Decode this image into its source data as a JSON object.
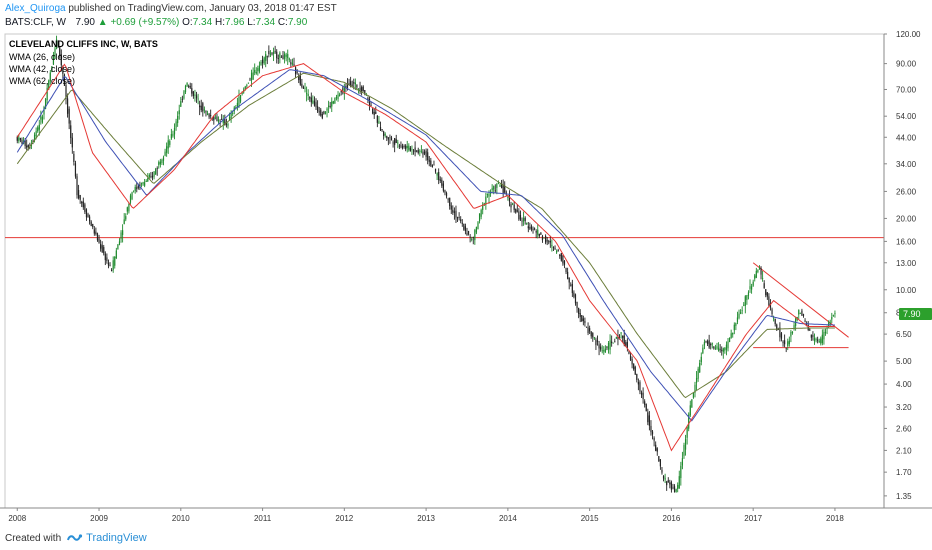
{
  "publication": {
    "author": "Alex_Quiroga",
    "text": " published on TradingView.com, January 03, 2018 01:47 EST"
  },
  "quote": {
    "symbol": "BATS:CLF, W",
    "last": "7.90",
    "change_arrow": "▲",
    "change": "+0.69 (+9.57%)",
    "open_label": "O:",
    "open": "7.34",
    "high_label": "H:",
    "high": "7.96",
    "low_label": "L:",
    "low": "7.34",
    "close_label": "C:",
    "close": "7.90"
  },
  "footer": {
    "created_with": "Created with",
    "brand": "TradingView"
  },
  "colors": {
    "up_candle": "#1f8a2e",
    "down_candle": "#222222",
    "wma26": "#e53935",
    "wma42": "#3f51b5",
    "wma62": "#6b7d3a",
    "support_line": "#e53935",
    "last_price_tag": "#2ca02c"
  },
  "chart_data": {
    "type": "candlestick",
    "title": "CLEVELAND CLIFFS INC, W, BATS",
    "legend": [
      "WMA (26, close)",
      "WMA (42, close)",
      "WMA (62, close)"
    ],
    "y_scale": "log",
    "y_ticks": [
      "120.00",
      "90.00",
      "70.00",
      "54.00",
      "44.00",
      "34.00",
      "26.00",
      "20.00",
      "16.00",
      "13.00",
      "10.00",
      "8.00",
      "6.50",
      "5.00",
      "4.00",
      "3.20",
      "2.60",
      "2.10",
      "1.70",
      "1.35"
    ],
    "x_ticks": [
      "2008",
      "2009",
      "2010",
      "2011",
      "2012",
      "2013",
      "2014",
      "2015",
      "2016",
      "2017",
      "2018"
    ],
    "last_price": "7.90",
    "price_path": [
      [
        "2008-01",
        44
      ],
      [
        "2008-03",
        40
      ],
      [
        "2008-05",
        55
      ],
      [
        "2008-07",
        115
      ],
      [
        "2008-08",
        80
      ],
      [
        "2008-10",
        26
      ],
      [
        "2008-12",
        19
      ],
      [
        "2009-03",
        12
      ],
      [
        "2009-06",
        26
      ],
      [
        "2009-09",
        30
      ],
      [
        "2009-12",
        45
      ],
      [
        "2010-02",
        75
      ],
      [
        "2010-05",
        55
      ],
      [
        "2010-08",
        50
      ],
      [
        "2010-11",
        75
      ],
      [
        "2011-02",
        100
      ],
      [
        "2011-05",
        95
      ],
      [
        "2011-08",
        65
      ],
      [
        "2011-10",
        55
      ],
      [
        "2012-02",
        75
      ],
      [
        "2012-04",
        70
      ],
      [
        "2012-07",
        45
      ],
      [
        "2012-10",
        40
      ],
      [
        "2013-01",
        38
      ],
      [
        "2013-03",
        30
      ],
      [
        "2013-05",
        22
      ],
      [
        "2013-08",
        16
      ],
      [
        "2013-10",
        25
      ],
      [
        "2013-12",
        28
      ],
      [
        "2014-03",
        20
      ],
      [
        "2014-06",
        17
      ],
      [
        "2014-09",
        14
      ],
      [
        "2014-12",
        7.5
      ],
      [
        "2015-03",
        5.5
      ],
      [
        "2015-06",
        6.5
      ],
      [
        "2015-09",
        3.5
      ],
      [
        "2015-12",
        1.6
      ],
      [
        "2016-02",
        1.4
      ],
      [
        "2016-04",
        3.2
      ],
      [
        "2016-06",
        6.0
      ],
      [
        "2016-09",
        5.5
      ],
      [
        "2016-12",
        9.0
      ],
      [
        "2017-02",
        12.5
      ],
      [
        "2017-04",
        7.8
      ],
      [
        "2017-06",
        5.6
      ],
      [
        "2017-08",
        8.2
      ],
      [
        "2017-10",
        6.2
      ],
      [
        "2017-11",
        6.0
      ],
      [
        "2018-01",
        7.9
      ]
    ],
    "wma26_path": [
      [
        "2008-01",
        44
      ],
      [
        "2008-08",
        90
      ],
      [
        "2008-12",
        38
      ],
      [
        "2009-06",
        22
      ],
      [
        "2009-12",
        32
      ],
      [
        "2010-06",
        55
      ],
      [
        "2011-01",
        80
      ],
      [
        "2011-07",
        90
      ],
      [
        "2012-01",
        68
      ],
      [
        "2012-07",
        55
      ],
      [
        "2013-01",
        42
      ],
      [
        "2013-08",
        22
      ],
      [
        "2014-01",
        25
      ],
      [
        "2014-08",
        16
      ],
      [
        "2015-01",
        9
      ],
      [
        "2015-08",
        5
      ],
      [
        "2016-01",
        2.1
      ],
      [
        "2016-06",
        3.5
      ],
      [
        "2016-12",
        6.5
      ],
      [
        "2017-04",
        9
      ],
      [
        "2017-09",
        7.0
      ],
      [
        "2018-01",
        7.0
      ]
    ],
    "wma42_path": [
      [
        "2008-01",
        38
      ],
      [
        "2008-08",
        80
      ],
      [
        "2009-02",
        42
      ],
      [
        "2009-08",
        25
      ],
      [
        "2010-02",
        38
      ],
      [
        "2010-09",
        58
      ],
      [
        "2011-05",
        85
      ],
      [
        "2011-10",
        80
      ],
      [
        "2012-05",
        62
      ],
      [
        "2013-01",
        45
      ],
      [
        "2013-09",
        26
      ],
      [
        "2014-03",
        25
      ],
      [
        "2014-09",
        17
      ],
      [
        "2015-03",
        9
      ],
      [
        "2015-10",
        4.5
      ],
      [
        "2016-04",
        2.8
      ],
      [
        "2016-10",
        5
      ],
      [
        "2017-03",
        7.8
      ],
      [
        "2017-08",
        7.2
      ],
      [
        "2018-01",
        7.1
      ]
    ],
    "wma62_path": [
      [
        "2008-01",
        34
      ],
      [
        "2008-09",
        70
      ],
      [
        "2009-03",
        44
      ],
      [
        "2009-09",
        28
      ],
      [
        "2010-04",
        42
      ],
      [
        "2010-11",
        60
      ],
      [
        "2011-07",
        82
      ],
      [
        "2012-01",
        75
      ],
      [
        "2012-08",
        58
      ],
      [
        "2013-04",
        40
      ],
      [
        "2013-12",
        28
      ],
      [
        "2014-06",
        22
      ],
      [
        "2015-01",
        13
      ],
      [
        "2015-08",
        6.5
      ],
      [
        "2016-03",
        3.5
      ],
      [
        "2016-09",
        4.5
      ],
      [
        "2017-03",
        6.8
      ],
      [
        "2017-09",
        6.9
      ],
      [
        "2018-01",
        6.9
      ]
    ],
    "annotations": [
      {
        "type": "horizontal_line",
        "value": 16.6
      },
      {
        "type": "trend_line",
        "from": [
          "2017-01",
          13.0
        ],
        "to": [
          "2018-03",
          6.3
        ]
      },
      {
        "type": "horizontal_segment",
        "value": 5.7,
        "from": "2017-01",
        "to": "2018-03"
      }
    ]
  }
}
